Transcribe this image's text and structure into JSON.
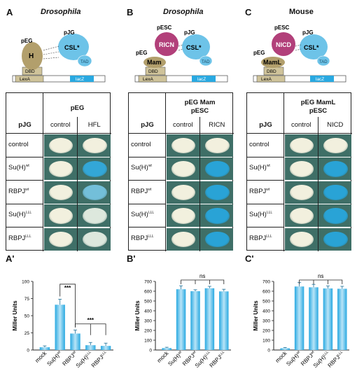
{
  "panels": [
    {
      "letter": "A",
      "title": "Drosophila",
      "italic": true,
      "schematic": {
        "top": "pJG",
        "bait": "pEG",
        "bait_protein": "H",
        "csl": "CSL*",
        "tad": "TAD",
        "dbd": "DBD",
        "lexa": "LexA",
        "lacz": "lacZ",
        "prey_extra": ""
      },
      "table": {
        "corner": "pJG",
        "header": [
          "pEG"
        ],
        "cols": [
          "control",
          "HFL"
        ],
        "rows": [
          {
            "label": "control",
            "sup": ""
          },
          {
            "label": "Su(H)",
            "sup": "wt"
          },
          {
            "label": "RBPJ",
            "sup": "wt"
          },
          {
            "label": "Su(H)",
            "sup": "LLL"
          },
          {
            "label": "RBPJ",
            "sup": "LLL"
          }
        ],
        "levels": [
          [
            0,
            0
          ],
          [
            0,
            0.9
          ],
          [
            0,
            0.6
          ],
          [
            0,
            0.1
          ],
          [
            0,
            0.1
          ]
        ]
      }
    },
    {
      "letter": "B",
      "title": "Drosophila",
      "italic": true,
      "schematic": {
        "top": "pJG",
        "bait": "pEG",
        "bait_protein": "Mam",
        "csl": "CSL*",
        "tad": "TAD",
        "dbd": "DBD",
        "lexa": "LexA",
        "lacz": "lacZ",
        "prey_extra": "pESC",
        "prey_extra_protein": "RICN"
      },
      "table": {
        "corner": "pJG",
        "header": [
          "pEG Mam",
          "pESC"
        ],
        "cols": [
          "control",
          "RICN"
        ],
        "rows": [
          {
            "label": "control",
            "sup": ""
          },
          {
            "label": "Su(H)",
            "sup": "wt"
          },
          {
            "label": "RBPJ",
            "sup": "wt"
          },
          {
            "label": "Su(H)",
            "sup": "LLL"
          },
          {
            "label": "RBPJ",
            "sup": "LLL"
          }
        ],
        "levels": [
          [
            0,
            0
          ],
          [
            0,
            0.95
          ],
          [
            0,
            0.95
          ],
          [
            0,
            0.95
          ],
          [
            0,
            0.95
          ]
        ]
      }
    },
    {
      "letter": "C",
      "title": "Mouse",
      "italic": false,
      "schematic": {
        "top": "pJG",
        "bait": "pEG",
        "bait_protein": "MamL",
        "csl": "CSL*",
        "tad": "TAD",
        "dbd": "DBD",
        "lexa": "LexA",
        "lacz": "lacZ",
        "prey_extra": "pESC",
        "prey_extra_protein": "NICD"
      },
      "table": {
        "corner": "pJG",
        "header": [
          "pEG MamL",
          "pESC"
        ],
        "cols": [
          "control",
          "NICD"
        ],
        "rows": [
          {
            "label": "control",
            "sup": ""
          },
          {
            "label": "Su(H)",
            "sup": "wt"
          },
          {
            "label": "RBPJ",
            "sup": "wt"
          },
          {
            "label": "Su(H)",
            "sup": "LLL"
          },
          {
            "label": "RBPJ",
            "sup": "LLL"
          }
        ],
        "levels": [
          [
            0,
            0
          ],
          [
            0,
            0.95
          ],
          [
            0,
            0.95
          ],
          [
            0,
            0.95
          ],
          [
            0,
            0.95
          ]
        ]
      }
    }
  ],
  "chart_data": [
    {
      "panel": "A'",
      "type": "bar",
      "categories": [
        "mock",
        "Su(H)",
        "RBPJ",
        "Su(H)",
        "RBPJ"
      ],
      "category_sups": [
        "",
        "wt",
        "wt",
        "LLL",
        "LLL"
      ],
      "values": [
        4,
        66,
        24,
        7,
        6
      ],
      "errors": [
        2,
        8,
        5,
        4,
        4
      ],
      "ylabel": "Miller Units",
      "ylim": [
        0,
        100
      ],
      "yticks": [
        0,
        25,
        50,
        75,
        100
      ],
      "annotations": [
        {
          "text": "***",
          "from": 1,
          "to": 2
        },
        {
          "text": "***",
          "from": 2,
          "to": 4
        }
      ]
    },
    {
      "panel": "B'",
      "type": "bar",
      "categories": [
        "mock",
        "Su(H)",
        "RBPJ",
        "Su(H)",
        "RBPJ"
      ],
      "category_sups": [
        "",
        "wt",
        "wt",
        "LLL",
        "LLL"
      ],
      "values": [
        20,
        620,
        600,
        630,
        598
      ],
      "errors": [
        8,
        35,
        15,
        20,
        22
      ],
      "ylabel": "Miller Units",
      "ylim": [
        0,
        700
      ],
      "yticks": [
        0,
        100,
        200,
        300,
        400,
        500,
        600,
        700
      ],
      "annotations": [
        {
          "text": "ns",
          "from": 1,
          "to": 4
        }
      ]
    },
    {
      "panel": "C'",
      "type": "bar",
      "categories": [
        "mock",
        "Su(H)",
        "RBPJ",
        "Su(H)",
        "RBPJ"
      ],
      "category_sups": [
        "",
        "wt",
        "wt",
        "LLL",
        "LLL"
      ],
      "values": [
        18,
        648,
        640,
        628,
        625
      ],
      "errors": [
        8,
        40,
        30,
        25,
        25
      ],
      "ylabel": "Miller Units",
      "ylim": [
        0,
        700
      ],
      "yticks": [
        0,
        100,
        200,
        300,
        400,
        500,
        600,
        700
      ],
      "annotations": [
        {
          "text": "ns",
          "from": 1,
          "to": 4
        }
      ]
    }
  ],
  "colors": {
    "bar": "#29a9e1",
    "bar_light": "#b9e4f7",
    "colony_white": "#f2f0de",
    "colony_blue": "#1e9fd6",
    "plate": "#3f6f67",
    "h_color": "#b29f6c",
    "csl_color": "#6dc3e8",
    "nicd_color": "#b2407a"
  }
}
